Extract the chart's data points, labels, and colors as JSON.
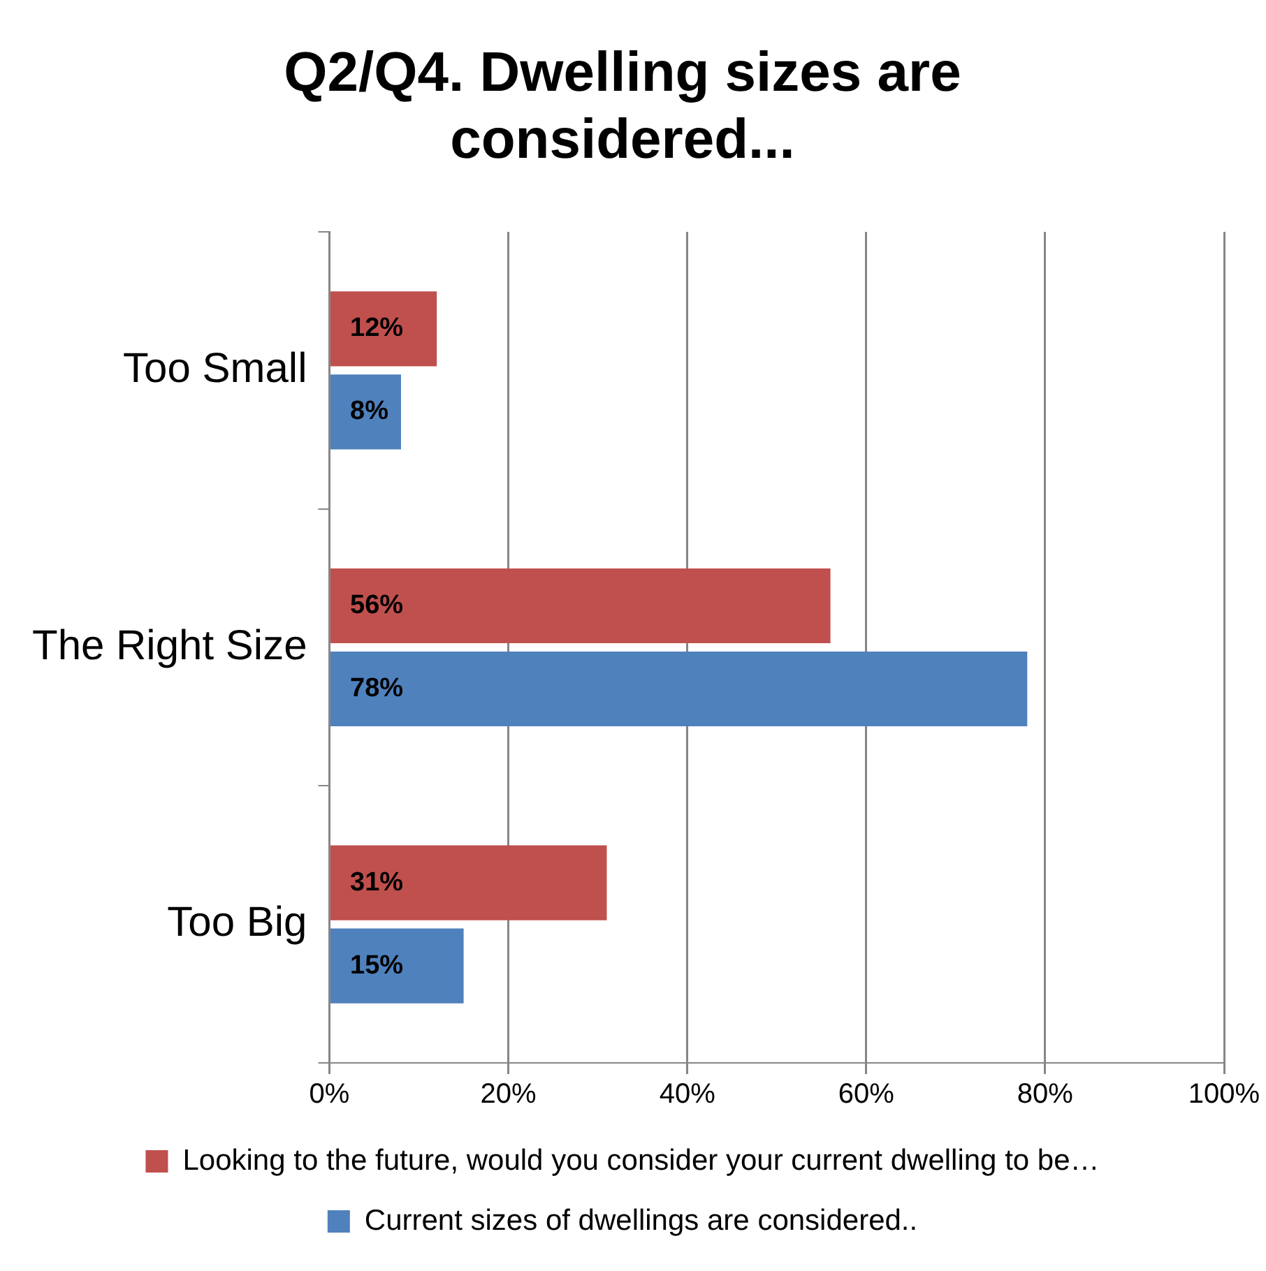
{
  "chart_data": {
    "type": "bar",
    "orientation": "horizontal",
    "title": "Q2/Q4. Dwelling sizes are considered...",
    "categories": [
      "Too Small",
      "The Right Size",
      "Too Big"
    ],
    "series": [
      {
        "name": "Looking to the future, would you consider your current dwelling to be…",
        "color": "#c0504d",
        "values": [
          12,
          56,
          31
        ],
        "value_labels": [
          "12%",
          "56%",
          "31%"
        ]
      },
      {
        "name": "Current sizes of dwellings are considered..",
        "color": "#4f81bd",
        "values": [
          8,
          78,
          15
        ],
        "value_labels": [
          "8%",
          "78%",
          "15%"
        ]
      }
    ],
    "xlim": [
      0,
      100
    ],
    "xticks": [
      {
        "value": 0,
        "label": "0%"
      },
      {
        "value": 20,
        "label": "20%"
      },
      {
        "value": 40,
        "label": "40%"
      },
      {
        "value": 60,
        "label": "60%"
      },
      {
        "value": 80,
        "label": "80%"
      },
      {
        "value": 100,
        "label": "100%"
      }
    ],
    "grid": "x",
    "legend": "bottom"
  }
}
